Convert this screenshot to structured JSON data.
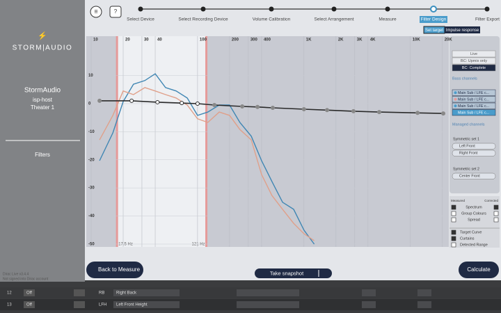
{
  "sidebar": {
    "logo": "STORM|AUDIO",
    "device": "StormAudio",
    "host": "isp-host",
    "theater": "Theater 1",
    "nav": "Filters",
    "version": "Dirac Live v3.4.4",
    "status": "Not signed into Dirac account"
  },
  "header": {
    "steps": [
      "Select Device",
      "Select Recording Device",
      "Volume Calibration",
      "Select Arrangement",
      "Measure",
      "Filter Design",
      "Filter Export"
    ],
    "active_step": 5,
    "tabs": [
      "Set target",
      "Impulse response"
    ]
  },
  "chart_data": {
    "type": "line",
    "x_scale": "log",
    "xlim": [
      9,
      23000
    ],
    "ylim": [
      -51,
      24
    ],
    "xticks": [
      10,
      20,
      30,
      40,
      100,
      200,
      300,
      400,
      {
        "value": 1000,
        "label": "1K"
      },
      {
        "value": 2000,
        "label": "2K"
      },
      {
        "value": 3000,
        "label": "3K"
      },
      {
        "value": 4000,
        "label": "4K"
      },
      {
        "value": 10000,
        "label": "10K"
      },
      {
        "value": 20000,
        "label": "20K"
      }
    ],
    "yticks": [
      10,
      0,
      -10,
      -20,
      -30,
      -40,
      -50
    ],
    "grid": true,
    "curtains": [
      {
        "value": 17.5,
        "label": "17.5 Hz"
      },
      {
        "value": 121,
        "label": "121 Hz"
      }
    ],
    "x": [
      12,
      16,
      20,
      25,
      32,
      40,
      50,
      63,
      80,
      100,
      125,
      160,
      200,
      250,
      320,
      400,
      500,
      630,
      800,
      1000,
      1250
    ],
    "series": [
      {
        "color": "#3f86b3",
        "values": [
          -20.3,
          -10.4,
          0.7,
          6.9,
          8.2,
          10.6,
          5.7,
          4.5,
          2,
          -4.2,
          -3,
          -0.5,
          -0.5,
          -6.7,
          -11.6,
          -20.3,
          -27.7,
          -35.1,
          -37.6,
          -45,
          -50
        ]
      },
      {
        "color": "#e0a08a",
        "values": [
          -12.9,
          -4.2,
          4.5,
          3.2,
          5.7,
          4.5,
          3.2,
          2,
          -0.5,
          -5.4,
          -6.7,
          -3,
          -4.2,
          -9.2,
          -12.9,
          -25.2,
          -32.7,
          -37.6,
          -42.6,
          -46.3,
          -48.8
        ]
      }
    ],
    "target": {
      "color": "#2a2a2a",
      "x": [
        12,
        24,
        42,
        71,
        100,
        144,
        263,
        366,
        509,
        1000,
        1650,
        2920,
        5100,
        11700,
        20400
      ],
      "values": [
        1,
        1,
        0.5,
        0.2,
        0,
        -0.5,
        -1,
        -1.2,
        -1.5,
        -2,
        -2.3,
        -2.7,
        -3,
        -3.3,
        -3.5
      ]
    }
  },
  "panel": {
    "modes": [
      "Live",
      "BC: Upmix only",
      "BC: Complete"
    ],
    "bass_title": "Bass channels",
    "bass": [
      "Main Sub / LFE c...",
      "Main Sub / LFE c...",
      "Main Sub / LFE c...",
      "Main Sub / LFE c..."
    ],
    "managed_title": "Managed channels",
    "sets": [
      {
        "name": "Symmetric set 1",
        "channels": [
          "Left Front",
          "Right Front"
        ]
      },
      {
        "name": "Symmetric set 2",
        "channels": [
          "Center Front"
        ]
      }
    ]
  },
  "legend": {
    "measured": "Measured",
    "corrected": "Corrected",
    "items": [
      {
        "label": "Spectrum",
        "measured": true,
        "corrected": true
      },
      {
        "label": "Group Colours",
        "measured": false,
        "corrected": false
      },
      {
        "label": "Spread",
        "measured": false,
        "corrected": false
      }
    ],
    "target_items": [
      {
        "label": "Target Curve",
        "checked": true
      },
      {
        "label": "Curtains",
        "checked": true
      },
      {
        "label": "Detected Range",
        "checked": false
      }
    ]
  },
  "buttons": {
    "back": "Back to Measure",
    "snapshot": "Take snapshot",
    "calculate": "Calculate"
  },
  "table": {
    "rows": [
      [
        "12",
        "Off",
        "RB",
        "Right Back"
      ],
      [
        "13",
        "Off",
        "LFH",
        "Left Front Height"
      ]
    ]
  }
}
